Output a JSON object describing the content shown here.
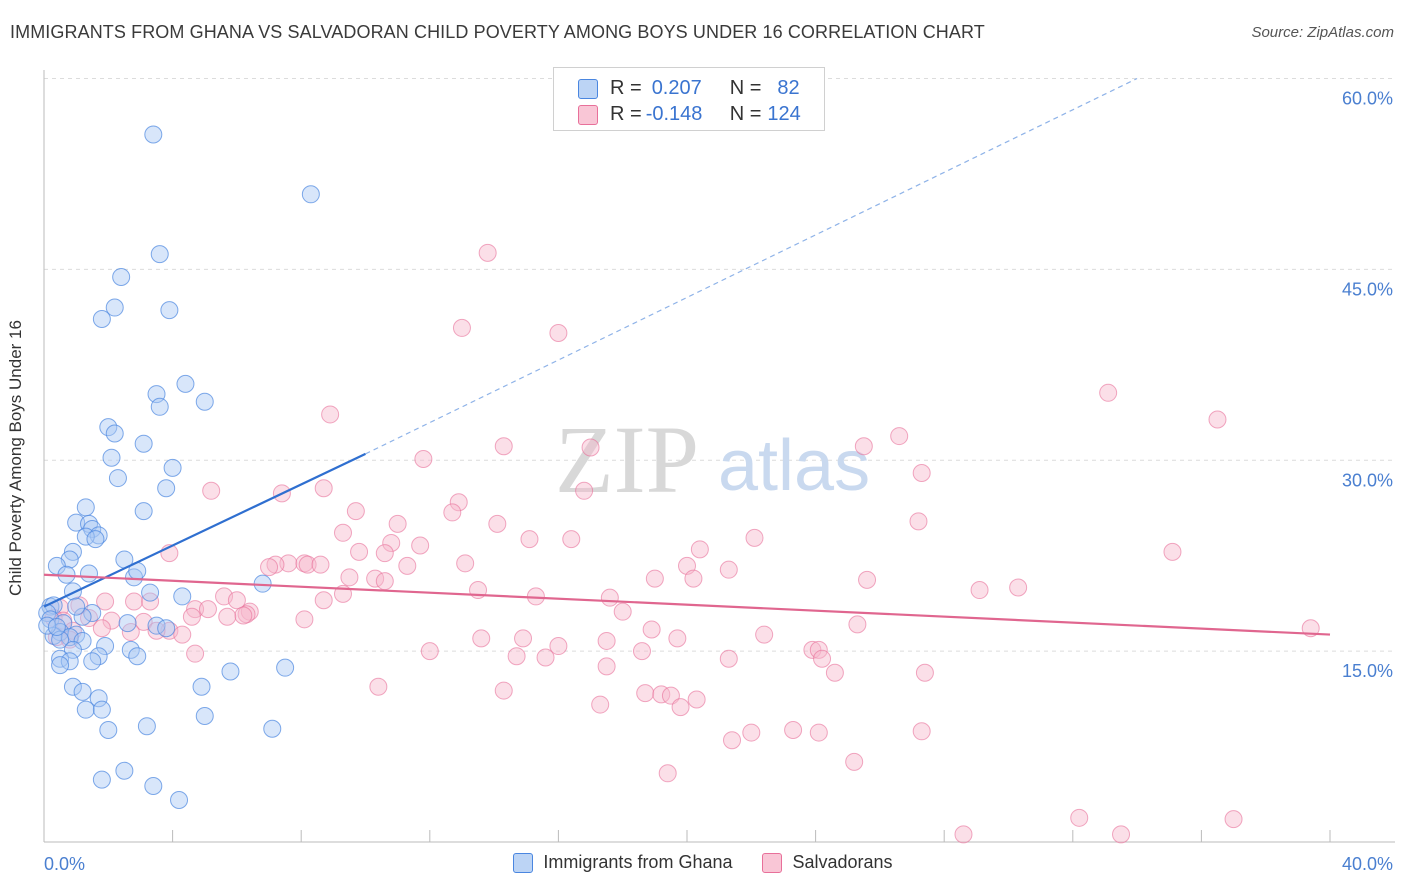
{
  "title": "IMMIGRANTS FROM GHANA VS SALVADORAN CHILD POVERTY AMONG BOYS UNDER 16 CORRELATION CHART",
  "source": "Source: ZipAtlas.com",
  "watermark": {
    "zip": "ZIP",
    "atlas": "atlas"
  },
  "colors": {
    "blue": "#4a86e0",
    "blue_fill": "#a9c8f3",
    "pink": "#e8709a",
    "pink_fill": "#f6b8cd",
    "axis_text": "#4a7fd0"
  },
  "legend_top": {
    "rows": [
      {
        "r_label": "R =",
        "r_value": "0.207",
        "n_label": "N =",
        "n_value": "82"
      },
      {
        "r_label": "R =",
        "r_value": "-0.148",
        "n_label": "N =",
        "n_value": "124"
      }
    ]
  },
  "legend_bottom": {
    "series1": "Immigrants from Ghana",
    "series2": "Salvadorans"
  },
  "chart_data": {
    "type": "scatter",
    "title": "IMMIGRANTS FROM GHANA VS SALVADORAN CHILD POVERTY AMONG BOYS UNDER 16 CORRELATION CHART",
    "xlabel": "",
    "ylabel": "Child Poverty Among Boys Under 16",
    "xlim": [
      0,
      40
    ],
    "ylim": [
      0,
      60
    ],
    "x_tick_labels": [
      "0.0%",
      "40.0%"
    ],
    "y_tick_labels": [
      "15.0%",
      "30.0%",
      "45.0%",
      "60.0%"
    ],
    "y_ticks": [
      15,
      30,
      45,
      60
    ],
    "grid": true,
    "series": [
      {
        "name": "Immigrants from Ghana",
        "r": 0.207,
        "n": 82,
        "trend": {
          "x": [
            0,
            10
          ],
          "y": [
            18.5,
            30.5
          ],
          "extended_to": [
            34,
            60
          ]
        },
        "points": [
          [
            3.4,
            55.6
          ],
          [
            8.3,
            50.9
          ],
          [
            3.6,
            46.2
          ],
          [
            2.4,
            44.4
          ],
          [
            2.2,
            42.0
          ],
          [
            1.8,
            41.1
          ],
          [
            3.9,
            41.8
          ],
          [
            4.4,
            36.0
          ],
          [
            3.5,
            35.2
          ],
          [
            3.6,
            34.2
          ],
          [
            5.0,
            34.6
          ],
          [
            2.0,
            32.6
          ],
          [
            2.2,
            32.1
          ],
          [
            3.1,
            31.3
          ],
          [
            2.1,
            30.2
          ],
          [
            4.0,
            29.4
          ],
          [
            2.3,
            28.6
          ],
          [
            3.8,
            27.8
          ],
          [
            1.3,
            26.3
          ],
          [
            3.1,
            26.0
          ],
          [
            1.0,
            25.1
          ],
          [
            1.4,
            25.0
          ],
          [
            1.5,
            24.6
          ],
          [
            1.7,
            24.1
          ],
          [
            1.3,
            24.0
          ],
          [
            1.6,
            23.8
          ],
          [
            0.9,
            22.8
          ],
          [
            0.8,
            22.2
          ],
          [
            2.5,
            22.2
          ],
          [
            0.4,
            21.7
          ],
          [
            1.4,
            21.1
          ],
          [
            0.7,
            21.0
          ],
          [
            2.8,
            20.8
          ],
          [
            0.9,
            19.7
          ],
          [
            3.3,
            19.6
          ],
          [
            4.3,
            19.3
          ],
          [
            0.2,
            18.5
          ],
          [
            0.3,
            18.6
          ],
          [
            0.1,
            18.0
          ],
          [
            1.5,
            18.0
          ],
          [
            0.2,
            17.5
          ],
          [
            1.2,
            17.7
          ],
          [
            0.6,
            17.2
          ],
          [
            2.6,
            17.2
          ],
          [
            3.5,
            17.0
          ],
          [
            3.8,
            16.8
          ],
          [
            0.5,
            16.5
          ],
          [
            1.0,
            16.3
          ],
          [
            0.3,
            16.2
          ],
          [
            0.8,
            16.1
          ],
          [
            0.5,
            15.9
          ],
          [
            1.2,
            15.8
          ],
          [
            1.9,
            15.4
          ],
          [
            0.9,
            15.1
          ],
          [
            2.7,
            15.1
          ],
          [
            1.7,
            14.6
          ],
          [
            0.5,
            14.4
          ],
          [
            2.9,
            14.6
          ],
          [
            0.8,
            14.2
          ],
          [
            1.5,
            14.2
          ],
          [
            0.5,
            13.9
          ],
          [
            5.8,
            13.4
          ],
          [
            7.5,
            13.7
          ],
          [
            0.9,
            12.2
          ],
          [
            4.9,
            12.2
          ],
          [
            1.2,
            11.8
          ],
          [
            1.7,
            11.3
          ],
          [
            1.3,
            10.4
          ],
          [
            1.8,
            10.4
          ],
          [
            5.0,
            9.9
          ],
          [
            3.2,
            9.1
          ],
          [
            2.0,
            8.8
          ],
          [
            7.1,
            8.9
          ],
          [
            2.5,
            5.6
          ],
          [
            1.8,
            4.9
          ],
          [
            3.4,
            4.4
          ],
          [
            4.2,
            3.3
          ],
          [
            0.1,
            17.0
          ],
          [
            0.4,
            16.9
          ],
          [
            1.0,
            18.5
          ],
          [
            2.9,
            21.3
          ],
          [
            6.8,
            20.3
          ]
        ]
      },
      {
        "name": "Salvadorans",
        "r": -0.148,
        "n": 124,
        "trend": {
          "x": [
            0,
            40
          ],
          "y": [
            21.0,
            16.3
          ]
        },
        "points": [
          [
            13.8,
            46.3
          ],
          [
            13.0,
            40.4
          ],
          [
            16.0,
            40.0
          ],
          [
            33.1,
            35.3
          ],
          [
            36.5,
            33.2
          ],
          [
            8.9,
            33.6
          ],
          [
            14.3,
            31.1
          ],
          [
            17.0,
            31.0
          ],
          [
            26.6,
            31.9
          ],
          [
            25.5,
            31.1
          ],
          [
            11.8,
            30.1
          ],
          [
            27.3,
            29.0
          ],
          [
            5.2,
            27.6
          ],
          [
            7.4,
            27.4
          ],
          [
            8.7,
            27.8
          ],
          [
            16.8,
            27.6
          ],
          [
            12.9,
            26.7
          ],
          [
            12.7,
            25.9
          ],
          [
            9.7,
            26.0
          ],
          [
            14.1,
            25.0
          ],
          [
            11.0,
            25.0
          ],
          [
            27.2,
            25.2
          ],
          [
            9.3,
            24.3
          ],
          [
            15.1,
            23.8
          ],
          [
            16.4,
            23.8
          ],
          [
            22.1,
            23.9
          ],
          [
            10.8,
            23.5
          ],
          [
            11.7,
            23.3
          ],
          [
            20.4,
            23.0
          ],
          [
            35.1,
            22.8
          ],
          [
            3.9,
            22.7
          ],
          [
            10.6,
            22.7
          ],
          [
            9.8,
            22.8
          ],
          [
            13.1,
            21.9
          ],
          [
            7.6,
            21.9
          ],
          [
            8.1,
            21.9
          ],
          [
            8.2,
            21.8
          ],
          [
            7.2,
            21.8
          ],
          [
            8.6,
            21.8
          ],
          [
            7.0,
            21.6
          ],
          [
            11.3,
            21.7
          ],
          [
            20.0,
            21.7
          ],
          [
            21.3,
            21.4
          ],
          [
            9.5,
            20.8
          ],
          [
            10.3,
            20.7
          ],
          [
            10.6,
            20.5
          ],
          [
            19.0,
            20.7
          ],
          [
            20.2,
            20.7
          ],
          [
            25.6,
            20.6
          ],
          [
            13.5,
            19.8
          ],
          [
            29.1,
            19.8
          ],
          [
            30.3,
            20.0
          ],
          [
            9.3,
            19.5
          ],
          [
            15.3,
            19.3
          ],
          [
            17.6,
            19.2
          ],
          [
            5.6,
            19.3
          ],
          [
            6.0,
            19.0
          ],
          [
            8.7,
            19.0
          ],
          [
            2.8,
            18.9
          ],
          [
            1.9,
            18.9
          ],
          [
            3.3,
            18.9
          ],
          [
            1.1,
            18.6
          ],
          [
            0.5,
            18.4
          ],
          [
            4.7,
            18.3
          ],
          [
            5.1,
            18.3
          ],
          [
            6.4,
            18.1
          ],
          [
            6.3,
            17.9
          ],
          [
            6.2,
            17.8
          ],
          [
            5.7,
            17.7
          ],
          [
            4.6,
            17.7
          ],
          [
            18.0,
            18.1
          ],
          [
            0.3,
            17.6
          ],
          [
            0.6,
            17.4
          ],
          [
            1.4,
            17.6
          ],
          [
            2.1,
            17.4
          ],
          [
            3.1,
            17.3
          ],
          [
            8.1,
            17.5
          ],
          [
            1.8,
            16.8
          ],
          [
            0.9,
            16.6
          ],
          [
            2.7,
            16.5
          ],
          [
            3.9,
            16.6
          ],
          [
            4.3,
            16.3
          ],
          [
            3.5,
            16.6
          ],
          [
            18.9,
            16.7
          ],
          [
            25.3,
            17.1
          ],
          [
            39.4,
            16.8
          ],
          [
            0.4,
            16.1
          ],
          [
            0.8,
            15.9
          ],
          [
            13.6,
            16.0
          ],
          [
            14.9,
            16.0
          ],
          [
            17.5,
            15.8
          ],
          [
            19.7,
            16.0
          ],
          [
            22.4,
            16.3
          ],
          [
            16.0,
            15.4
          ],
          [
            23.9,
            15.1
          ],
          [
            12.0,
            15.0
          ],
          [
            18.6,
            15.0
          ],
          [
            24.1,
            15.1
          ],
          [
            4.7,
            14.8
          ],
          [
            14.7,
            14.6
          ],
          [
            15.6,
            14.5
          ],
          [
            21.3,
            14.4
          ],
          [
            24.2,
            14.4
          ],
          [
            17.5,
            13.8
          ],
          [
            24.6,
            13.3
          ],
          [
            27.4,
            13.3
          ],
          [
            10.4,
            12.2
          ],
          [
            14.3,
            11.9
          ],
          [
            18.7,
            11.7
          ],
          [
            19.2,
            11.6
          ],
          [
            19.5,
            11.5
          ],
          [
            20.3,
            11.2
          ],
          [
            17.3,
            10.8
          ],
          [
            19.8,
            10.6
          ],
          [
            22.0,
            8.6
          ],
          [
            23.3,
            8.8
          ],
          [
            24.1,
            8.6
          ],
          [
            27.3,
            8.7
          ],
          [
            21.4,
            8.0
          ],
          [
            25.2,
            6.3
          ],
          [
            19.4,
            5.4
          ],
          [
            32.2,
            1.9
          ],
          [
            37.0,
            1.8
          ],
          [
            28.6,
            0.6
          ],
          [
            33.5,
            0.6
          ]
        ]
      }
    ]
  }
}
